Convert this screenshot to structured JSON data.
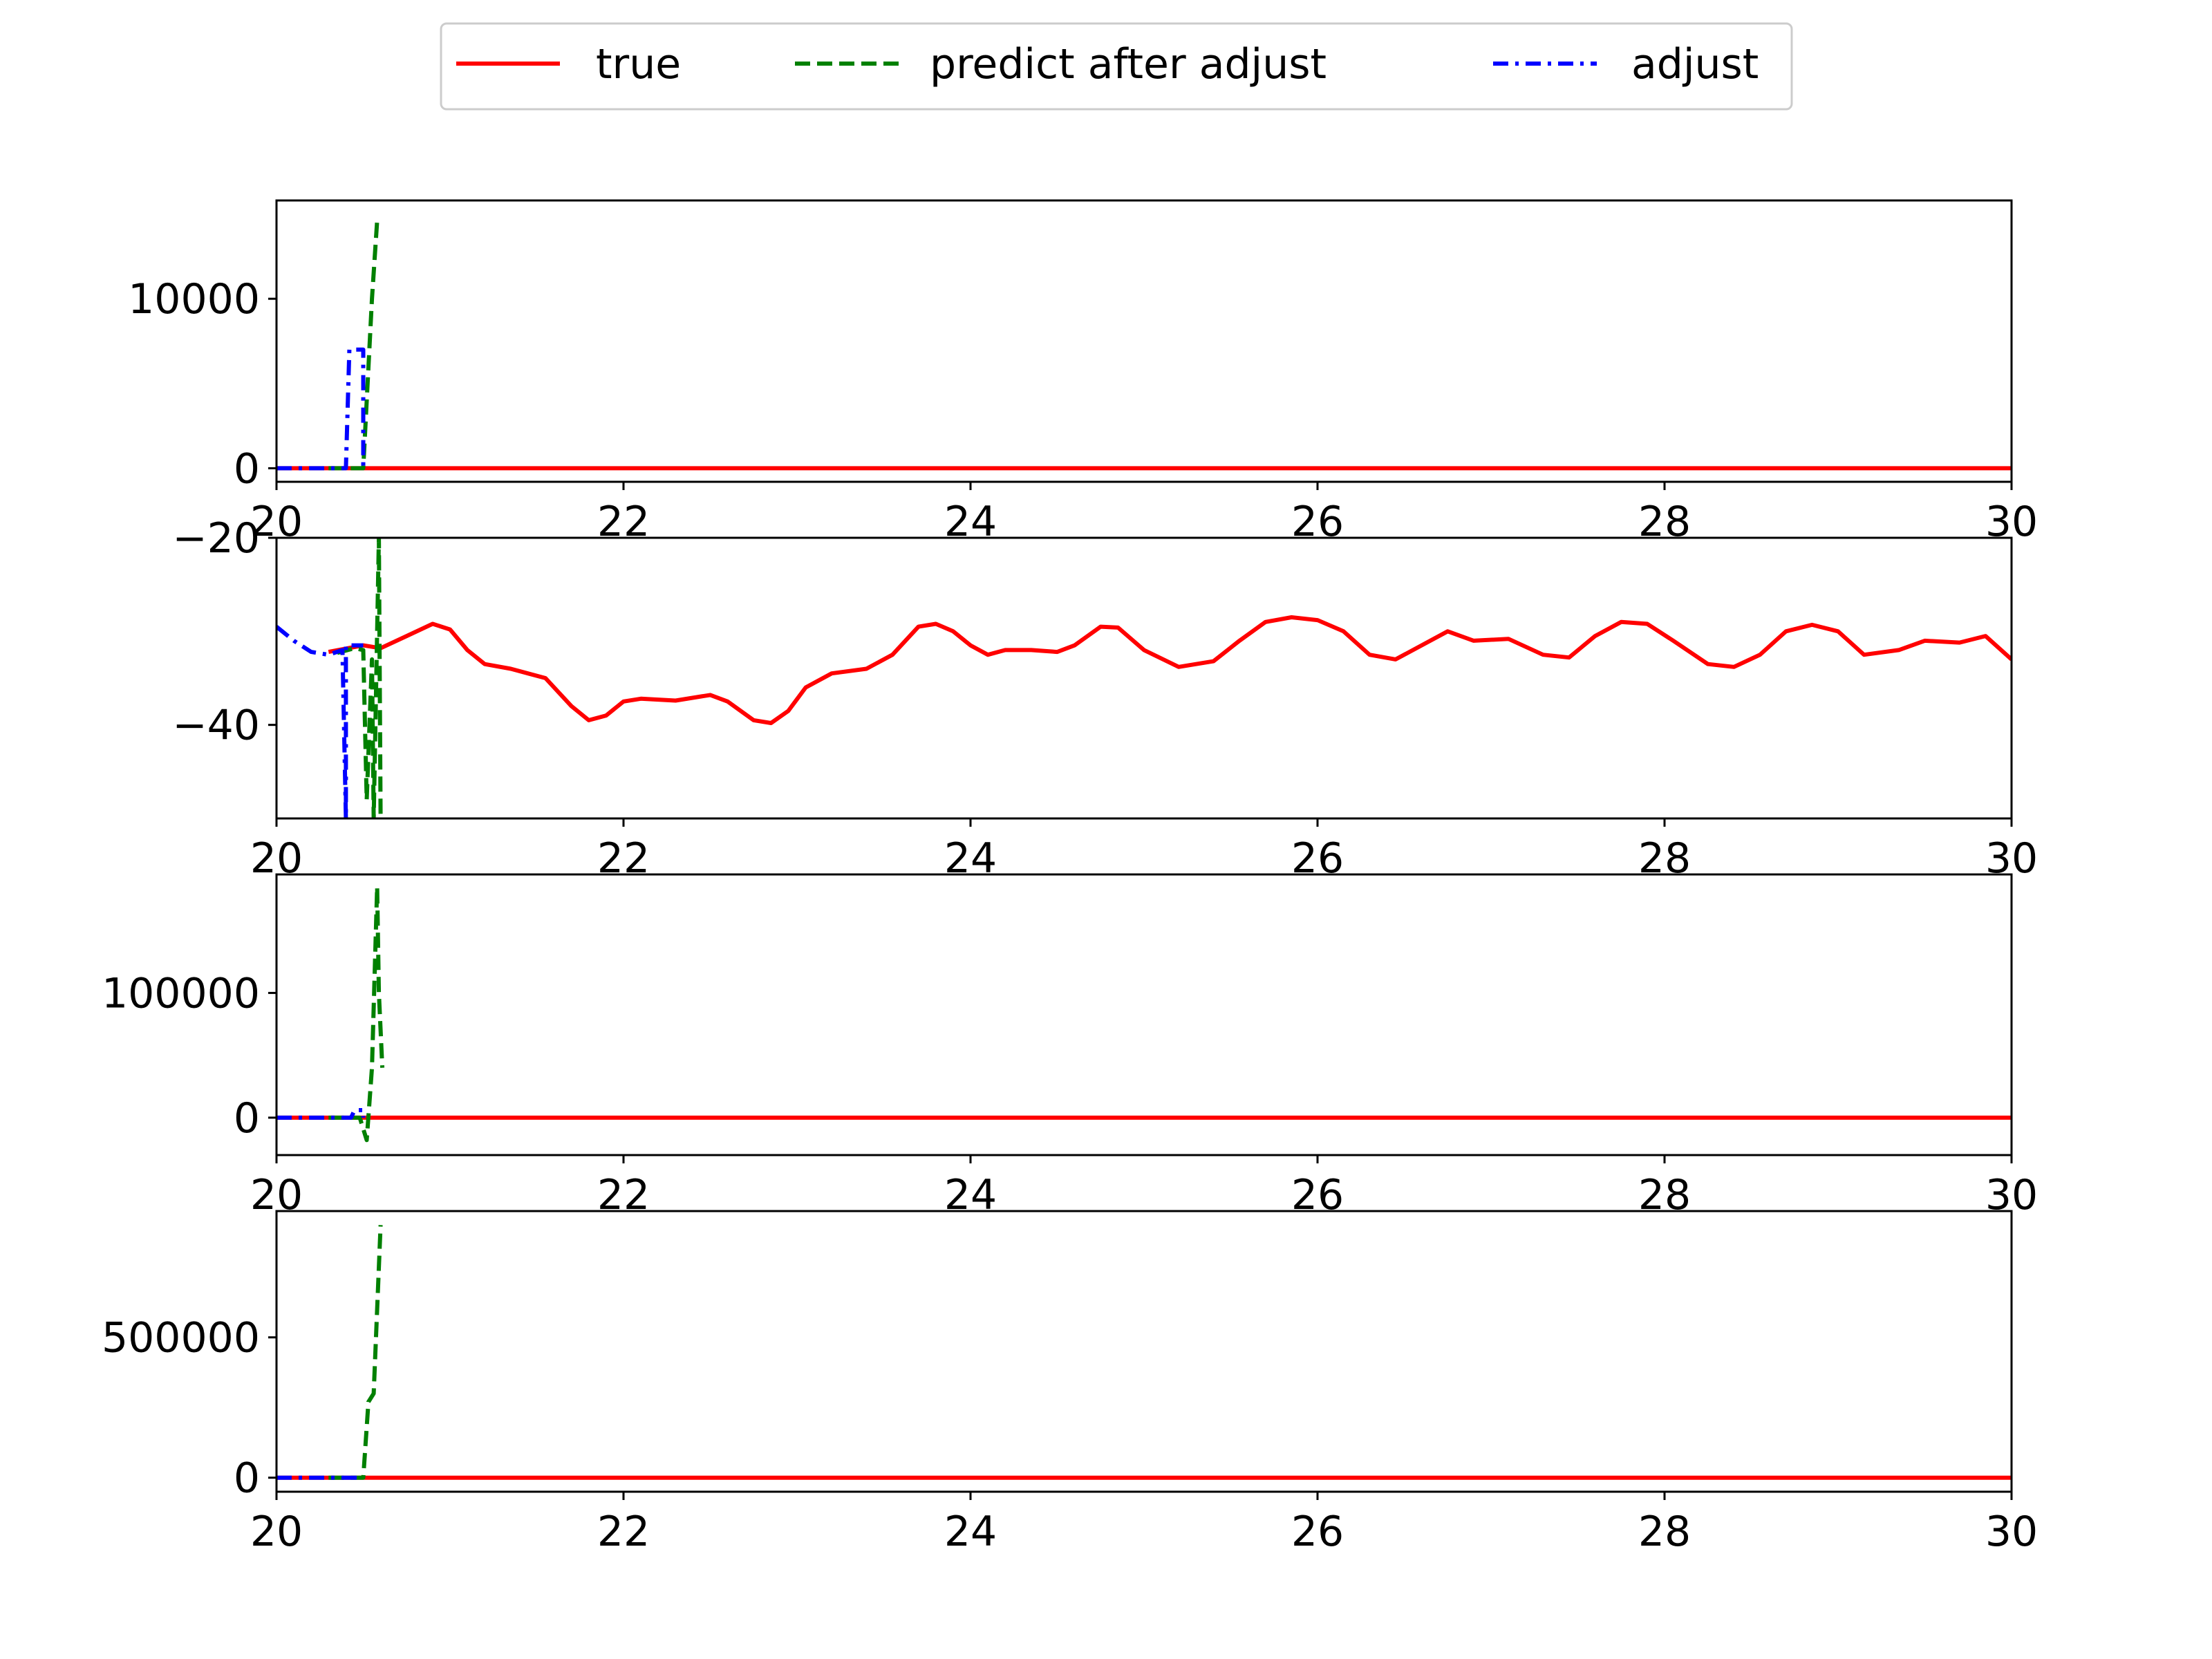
{
  "legend": {
    "placement": "top-center",
    "entries": [
      {
        "name": "true",
        "color": "#ff0000",
        "dash": "solid"
      },
      {
        "name": "predict after adjust",
        "color": "#008000",
        "dash": "dashed"
      },
      {
        "name": "adjust",
        "color": "#0000ff",
        "dash": "dashdot"
      }
    ]
  },
  "chart_data": [
    {
      "type": "line",
      "xlim": [
        20,
        30
      ],
      "ylim": [
        -800,
        15800
      ],
      "x_ticks": [
        20,
        22,
        24,
        26,
        28,
        30
      ],
      "x_tick_labels": [
        "20",
        "22",
        "24",
        "26",
        "28",
        "30"
      ],
      "y_ticks": [
        0,
        10000
      ],
      "y_tick_labels": [
        "0",
        "10000"
      ],
      "grid": false,
      "series": [
        {
          "name": "true",
          "color": "#ff0000",
          "x": [
            20,
            30
          ],
          "y": [
            0,
            0
          ]
        },
        {
          "name": "predict after adjust",
          "color": "#008000",
          "x": [
            20.3,
            20.5,
            20.55,
            20.58
          ],
          "y": [
            0,
            0,
            10000,
            14600
          ]
        },
        {
          "name": "adjust",
          "color": "#0000ff",
          "x": [
            20,
            20.4,
            20.42,
            20.5,
            20.5
          ],
          "y": [
            0,
            0,
            7000,
            7000,
            0
          ]
        }
      ]
    },
    {
      "type": "line",
      "xlim": [
        20,
        30
      ],
      "ylim": [
        -50,
        -20
      ],
      "x_ticks": [
        20,
        22,
        24,
        26,
        28,
        30
      ],
      "x_tick_labels": [
        "20",
        "22",
        "24",
        "26",
        "28",
        "30"
      ],
      "y_ticks": [
        -20,
        -40
      ],
      "y_tick_labels": [
        "−20",
        "−40"
      ],
      "grid": false,
      "series": [
        {
          "name": "true",
          "color": "#ff0000",
          "x": [
            20.3,
            20.5,
            20.6,
            20.75,
            20.9,
            21.0,
            21.1,
            21.2,
            21.35,
            21.55,
            21.7,
            21.8,
            21.9,
            22.0,
            22.1,
            22.3,
            22.5,
            22.6,
            22.75,
            22.85,
            22.95,
            23.05,
            23.2,
            23.4,
            23.55,
            23.7,
            23.8,
            23.9,
            24.0,
            24.1,
            24.2,
            24.35,
            24.5,
            24.6,
            24.75,
            24.85,
            25.0,
            25.2,
            25.4,
            25.55,
            25.7,
            25.85,
            26.0,
            26.15,
            26.3,
            26.45,
            26.6,
            26.75,
            26.9,
            27.1,
            27.3,
            27.45,
            27.6,
            27.75,
            27.9,
            28.05,
            28.25,
            28.4,
            28.55,
            28.7,
            28.85,
            29.0,
            29.15,
            29.35,
            29.5,
            29.7,
            29.85,
            30.0
          ],
          "y": [
            -32.2,
            -31.5,
            -31.8,
            -30.5,
            -29.2,
            -29.8,
            -32.0,
            -33.5,
            -34.0,
            -35.0,
            -38.0,
            -39.5,
            -39.0,
            -37.5,
            -37.2,
            -37.4,
            -36.8,
            -37.5,
            -39.5,
            -39.8,
            -38.5,
            -36.0,
            -34.5,
            -34.0,
            -32.5,
            -29.5,
            -29.2,
            -30.0,
            -31.5,
            -32.5,
            -32.0,
            -32.0,
            -32.2,
            -31.5,
            -29.5,
            -29.6,
            -32.0,
            -33.8,
            -33.2,
            -31.0,
            -29.0,
            -28.5,
            -28.8,
            -30.0,
            -32.5,
            -33.0,
            -31.5,
            -30.0,
            -31.0,
            -30.8,
            -32.5,
            -32.8,
            -30.5,
            -29.0,
            -29.2,
            -31.0,
            -33.5,
            -33.8,
            -32.5,
            -30.0,
            -29.3,
            -30.0,
            -32.5,
            -32.0,
            -31.0,
            -31.2,
            -30.5,
            -33.0
          ]
        },
        {
          "name": "predict after adjust",
          "color": "#008000",
          "x": [
            20.35,
            20.45,
            20.5,
            20.52,
            20.55,
            20.56,
            20.59,
            20.6
          ],
          "y": [
            -32.3,
            -31.8,
            -32.0,
            -48.0,
            -33.0,
            -50.0,
            -20.0,
            -50.0
          ]
        },
        {
          "name": "adjust",
          "color": "#0000ff",
          "x": [
            20,
            20.1,
            20.2,
            20.3,
            20.38,
            20.4,
            20.4,
            20.5
          ],
          "y": [
            -29.5,
            -31.0,
            -32.2,
            -32.5,
            -32.0,
            -50.0,
            -31.5,
            -31.5
          ]
        }
      ]
    },
    {
      "type": "line",
      "xlim": [
        20,
        30
      ],
      "ylim": [
        -30000,
        195000
      ],
      "x_ticks": [
        20,
        22,
        24,
        26,
        28,
        30
      ],
      "x_tick_labels": [
        "20",
        "22",
        "24",
        "26",
        "28",
        "30"
      ],
      "y_ticks": [
        0,
        100000
      ],
      "y_tick_labels": [
        "0",
        "100000"
      ],
      "grid": false,
      "series": [
        {
          "name": "true",
          "color": "#ff0000",
          "x": [
            20,
            30
          ],
          "y": [
            0,
            0
          ]
        },
        {
          "name": "predict after adjust",
          "color": "#008000",
          "x": [
            20.3,
            20.48,
            20.52,
            20.55,
            20.58,
            20.59,
            20.61
          ],
          "y": [
            0,
            0,
            -18000,
            40000,
            185000,
            100000,
            40000
          ]
        },
        {
          "name": "adjust",
          "color": "#0000ff",
          "x": [
            20,
            20.43,
            20.45,
            20.5,
            20.5
          ],
          "y": [
            0,
            0,
            6000,
            6000,
            0
          ]
        }
      ]
    },
    {
      "type": "line",
      "xlim": [
        20,
        30
      ],
      "ylim": [
        -50000,
        950000
      ],
      "x_ticks": [
        20,
        22,
        24,
        26,
        28,
        30
      ],
      "x_tick_labels": [
        "20",
        "22",
        "24",
        "26",
        "28",
        "30"
      ],
      "y_ticks": [
        0,
        500000
      ],
      "y_tick_labels": [
        "0",
        "500000"
      ],
      "grid": false,
      "series": [
        {
          "name": "true",
          "color": "#ff0000",
          "x": [
            20,
            30
          ],
          "y": [
            0,
            0
          ]
        },
        {
          "name": "predict after adjust",
          "color": "#008000",
          "x": [
            20.3,
            20.5,
            20.53,
            20.56,
            20.58,
            20.6
          ],
          "y": [
            0,
            0,
            270000,
            300000,
            600000,
            900000
          ]
        },
        {
          "name": "adjust",
          "color": "#0000ff",
          "x": [
            20,
            20.43,
            20.5
          ],
          "y": [
            0,
            0,
            0
          ]
        }
      ]
    }
  ]
}
